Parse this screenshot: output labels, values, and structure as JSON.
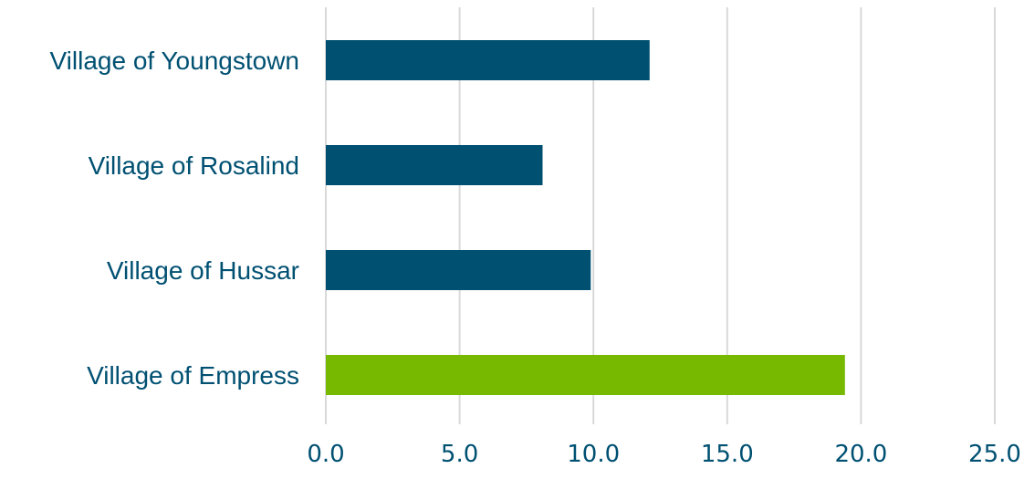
{
  "chart_data": {
    "type": "bar",
    "orientation": "horizontal",
    "title": "",
    "xlabel": "",
    "ylabel": "",
    "categories": [
      "Village of Youngstown",
      "Village of Rosalind",
      "Village of Hussar",
      "Village of Empress"
    ],
    "values": [
      12.1,
      8.1,
      9.9,
      19.4
    ],
    "bar_colors": [
      "#005072",
      "#005072",
      "#005072",
      "#76b900"
    ],
    "xlim": [
      0,
      25
    ],
    "x_ticks": [
      0,
      5,
      10,
      15,
      20,
      25
    ],
    "x_tick_labels": [
      "0.0",
      "5.0",
      "10.0",
      "15.0",
      "20.0",
      "25.0"
    ],
    "grid": "vertical",
    "grid_color": "#d9d9d9",
    "label_color": "#005072",
    "legend": "none"
  }
}
